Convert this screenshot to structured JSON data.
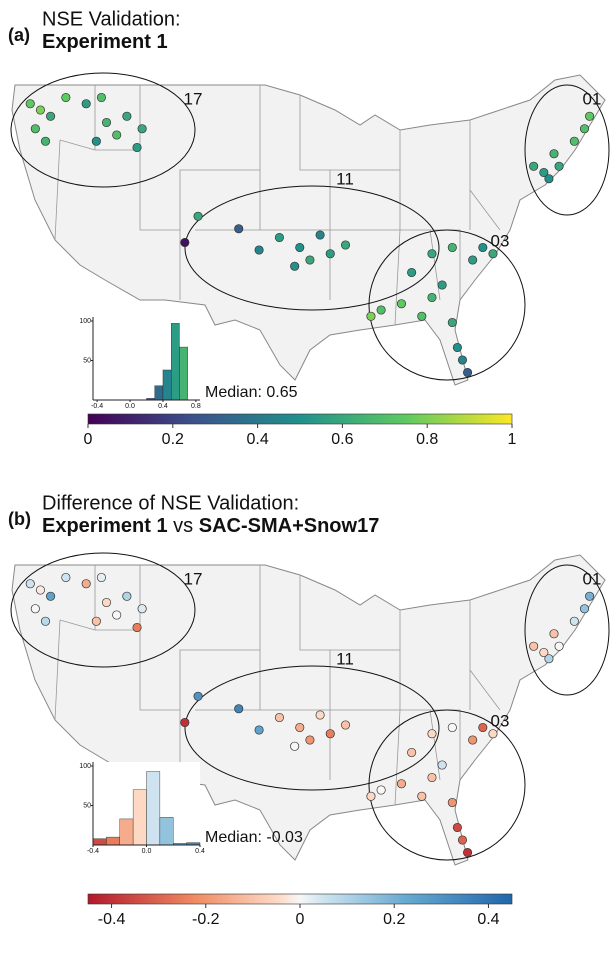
{
  "chart_data": [
    {
      "type": "map",
      "label": "(a)",
      "title": "NSE Validation:",
      "subtitle": [
        "Experiment 1"
      ],
      "colormap": "viridis",
      "regions": [
        "17",
        "11",
        "03",
        "01"
      ],
      "lon": [
        -123.5,
        -122.5,
        -123,
        -122,
        -121.5,
        -120,
        -118,
        -116.5,
        -116,
        -115,
        -114,
        -113,
        -117,
        -112.5,
        -108.3,
        -107,
        -103,
        -101,
        -99,
        -97,
        -96,
        -95,
        -94,
        -97.5,
        -92.5,
        -86,
        -84,
        -82,
        -80,
        -79,
        -78,
        -84,
        -87,
        -89,
        -90,
        -82,
        -81.5,
        -81,
        -80.5,
        -83,
        -85,
        -70,
        -72,
        -71.5,
        -73,
        -72.5,
        -69,
        -74,
        -68.5
      ],
      "lat": [
        47.5,
        47,
        45.5,
        44.5,
        46.5,
        48,
        47.5,
        48,
        46,
        45,
        46.5,
        44,
        44.5,
        45.5,
        36.4,
        38.5,
        37.5,
        35.8,
        36.8,
        36,
        35,
        37,
        35.5,
        34.5,
        36.2,
        34,
        35.5,
        36,
        35,
        36,
        35.5,
        32,
        31.5,
        31,
        30.5,
        30,
        28,
        27,
        26,
        33,
        30.5,
        44.5,
        43.5,
        42.5,
        42,
        41.5,
        45.5,
        42.5,
        46.5
      ],
      "values": [
        0.75,
        0.8,
        0.7,
        0.65,
        0.6,
        0.75,
        0.55,
        0.7,
        0.65,
        0.7,
        0.6,
        0.55,
        0.5,
        0.6,
        0.05,
        0.6,
        0.3,
        0.45,
        0.55,
        0.5,
        0.6,
        0.45,
        0.55,
        0.5,
        0.6,
        0.55,
        0.6,
        0.65,
        0.55,
        0.5,
        0.6,
        0.65,
        0.75,
        0.7,
        0.8,
        0.6,
        0.5,
        0.45,
        0.3,
        0.55,
        0.7,
        0.7,
        0.65,
        0.6,
        0.55,
        0.5,
        0.7,
        0.6,
        0.75
      ],
      "histogram": {
        "bins": [
          0.2,
          0.3,
          0.4,
          0.5,
          0.6,
          0.7
        ],
        "counts": [
          2,
          18,
          38,
          97,
          67
        ],
        "xlim": [
          -0.45,
          0.85
        ],
        "xticks": [
          -0.4,
          {
            "value": 0,
            "label": "0.0"
          },
          0.4,
          0.8
        ],
        "ylim": [
          0,
          100
        ],
        "yticks": [
          50,
          100
        ]
      },
      "median_label": "Median: 0.65",
      "colorbar": {
        "lim": [
          0,
          1
        ],
        "ticks": [
          0,
          0.2,
          0.4,
          0.6,
          0.8,
          1
        ]
      }
    },
    {
      "type": "map",
      "label": "(b)",
      "title": "Difference of NSE Validation:",
      "subtitle": [
        "Experiment 1",
        "vs",
        "SAC-SMA+Snow17"
      ],
      "colormap": "RdBu",
      "regions": [
        "17",
        "11",
        "03",
        "01"
      ],
      "lon": [
        -123.5,
        -122.5,
        -123,
        -122,
        -121.5,
        -120,
        -118,
        -116.5,
        -116,
        -115,
        -114,
        -113,
        -117,
        -112.5,
        -108.3,
        -107,
        -103,
        -101,
        -99,
        -97,
        -96,
        -95,
        -94,
        -97.5,
        -92.5,
        -86,
        -84,
        -82,
        -80,
        -79,
        -78,
        -84,
        -87,
        -89,
        -90,
        -82,
        -81.5,
        -81,
        -80.5,
        -83,
        -85,
        -70,
        -72,
        -71.5,
        -73,
        -72.5,
        -69,
        -74,
        -68.5
      ],
      "lat": [
        47.5,
        47,
        45.5,
        44.5,
        46.5,
        48,
        47.5,
        48,
        46,
        45,
        46.5,
        44,
        44.5,
        45.5,
        36.4,
        38.5,
        37.5,
        35.8,
        36.8,
        36,
        35,
        37,
        35.5,
        34.5,
        36.2,
        34,
        35.5,
        36,
        35,
        36,
        35.5,
        32,
        31.5,
        31,
        30.5,
        30,
        28,
        27,
        26,
        33,
        30.5,
        44.5,
        43.5,
        42.5,
        42,
        41.5,
        45.5,
        42.5,
        46.5
      ],
      "values": [
        0.05,
        -0.02,
        0,
        0.08,
        0.25,
        0.05,
        -0.15,
        0.02,
        -0.05,
        0,
        0.1,
        -0.25,
        -0.1,
        0.03,
        -0.4,
        0.3,
        0.35,
        0.25,
        -0.1,
        -0.15,
        -0.2,
        -0.05,
        -0.25,
        0,
        -0.1,
        -0.1,
        -0.05,
        0,
        -0.2,
        -0.3,
        -0.05,
        -0.1,
        -0.15,
        0,
        -0.05,
        -0.2,
        -0.35,
        -0.3,
        -0.4,
        0.05,
        -0.1,
        0.05,
        -0.1,
        0,
        -0.05,
        0.1,
        0.15,
        -0.1,
        0.2
      ],
      "histogram": {
        "bins": [
          -0.4,
          -0.3,
          -0.2,
          -0.1,
          0,
          0.1,
          0.2,
          0.3,
          0.4
        ],
        "counts": [
          8,
          10,
          33,
          70,
          93,
          35,
          2,
          3
        ],
        "xlim": [
          -0.4,
          0.4
        ],
        "xticks": [
          -0.4,
          {
            "value": 0,
            "label": "0.0"
          },
          0.4
        ],
        "ylim": [
          0,
          100
        ],
        "yticks": [
          50,
          100
        ]
      },
      "median_label": "Median: -0.03",
      "colorbar": {
        "lim": [
          -0.45,
          0.45
        ],
        "ticks": [
          -0.4,
          -0.2,
          0,
          0.2,
          0.4
        ]
      }
    }
  ]
}
